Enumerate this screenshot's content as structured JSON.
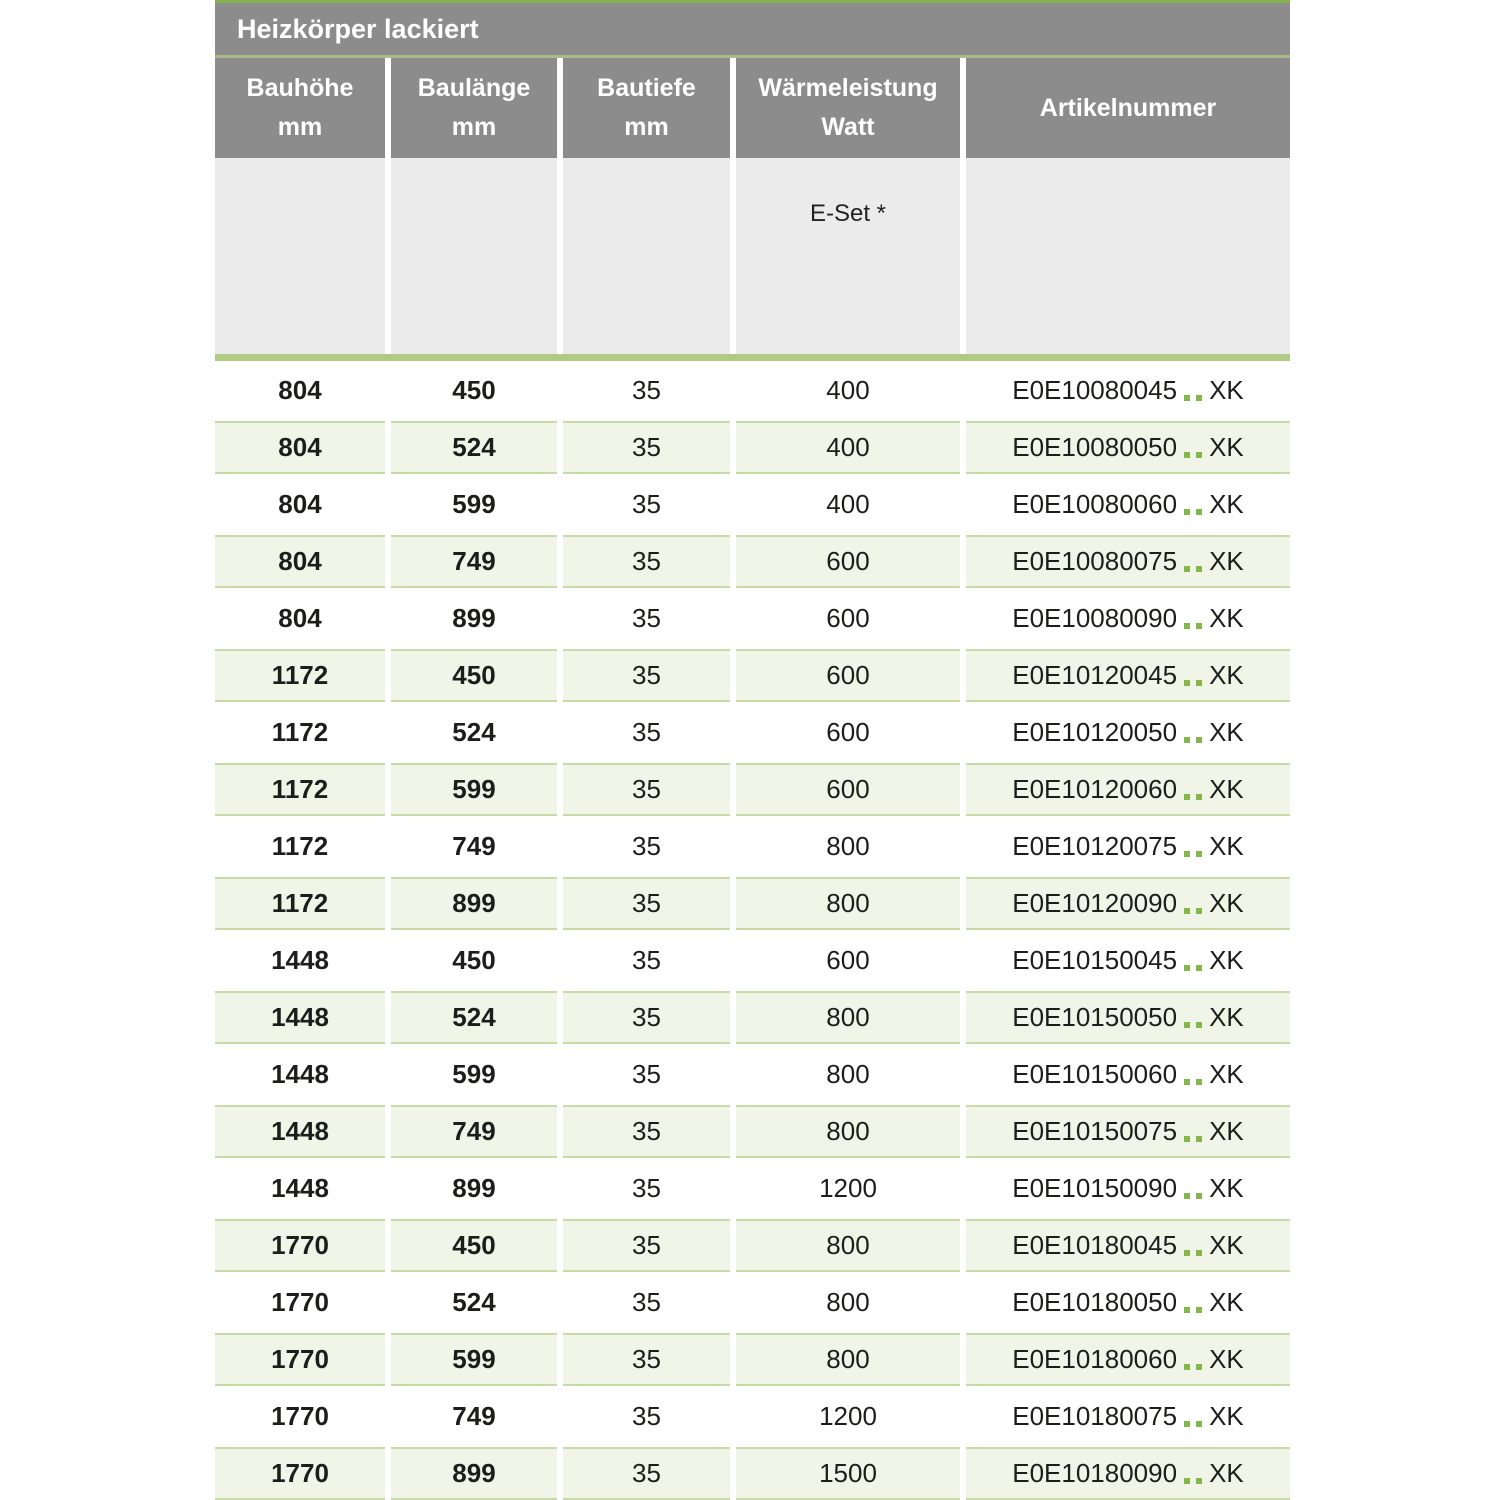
{
  "colors": {
    "gray": "#8c8c8c",
    "subGray": "#ebebeb",
    "greenTop": "#84b24c",
    "greenLine": "#a9bd85",
    "greenBar": "#afca82",
    "rowBg": "#f1f5e8",
    "rowBorder": "#c8daa6",
    "dot": "#84b74a",
    "text": "#1d1d1b"
  },
  "table": {
    "title": "Heizkörper lackiert",
    "columns": [
      {
        "line1": "Bauhöhe",
        "line2": "mm"
      },
      {
        "line1": "Baulänge",
        "line2": "mm"
      },
      {
        "line1": "Bautiefe",
        "line2": "mm"
      },
      {
        "line1": "Wärmeleistung",
        "line2": "Watt"
      },
      {
        "line1": "Artikelnummer",
        "line2": ""
      }
    ],
    "subheader": {
      "eset_label": "E-Set *"
    },
    "artikel_dots": "..",
    "rows": [
      {
        "bauhoehe": "804",
        "baulaenge": "450",
        "bautiefe": "35",
        "watt": "400",
        "artikel_code": "E0E10080045",
        "artikel_suffix": "XK"
      },
      {
        "bauhoehe": "804",
        "baulaenge": "524",
        "bautiefe": "35",
        "watt": "400",
        "artikel_code": "E0E10080050",
        "artikel_suffix": "XK"
      },
      {
        "bauhoehe": "804",
        "baulaenge": "599",
        "bautiefe": "35",
        "watt": "400",
        "artikel_code": "E0E10080060",
        "artikel_suffix": "XK"
      },
      {
        "bauhoehe": "804",
        "baulaenge": "749",
        "bautiefe": "35",
        "watt": "600",
        "artikel_code": "E0E10080075",
        "artikel_suffix": "XK"
      },
      {
        "bauhoehe": "804",
        "baulaenge": "899",
        "bautiefe": "35",
        "watt": "600",
        "artikel_code": "E0E10080090",
        "artikel_suffix": "XK"
      },
      {
        "bauhoehe": "1172",
        "baulaenge": "450",
        "bautiefe": "35",
        "watt": "600",
        "artikel_code": "E0E10120045",
        "artikel_suffix": "XK"
      },
      {
        "bauhoehe": "1172",
        "baulaenge": "524",
        "bautiefe": "35",
        "watt": "600",
        "artikel_code": "E0E10120050",
        "artikel_suffix": "XK"
      },
      {
        "bauhoehe": "1172",
        "baulaenge": "599",
        "bautiefe": "35",
        "watt": "600",
        "artikel_code": "E0E10120060",
        "artikel_suffix": "XK"
      },
      {
        "bauhoehe": "1172",
        "baulaenge": "749",
        "bautiefe": "35",
        "watt": "800",
        "artikel_code": "E0E10120075",
        "artikel_suffix": "XK"
      },
      {
        "bauhoehe": "1172",
        "baulaenge": "899",
        "bautiefe": "35",
        "watt": "800",
        "artikel_code": "E0E10120090",
        "artikel_suffix": "XK"
      },
      {
        "bauhoehe": "1448",
        "baulaenge": "450",
        "bautiefe": "35",
        "watt": "600",
        "artikel_code": "E0E10150045",
        "artikel_suffix": "XK"
      },
      {
        "bauhoehe": "1448",
        "baulaenge": "524",
        "bautiefe": "35",
        "watt": "800",
        "artikel_code": "E0E10150050",
        "artikel_suffix": "XK"
      },
      {
        "bauhoehe": "1448",
        "baulaenge": "599",
        "bautiefe": "35",
        "watt": "800",
        "artikel_code": "E0E10150060",
        "artikel_suffix": "XK"
      },
      {
        "bauhoehe": "1448",
        "baulaenge": "749",
        "bautiefe": "35",
        "watt": "800",
        "artikel_code": "E0E10150075",
        "artikel_suffix": "XK"
      },
      {
        "bauhoehe": "1448",
        "baulaenge": "899",
        "bautiefe": "35",
        "watt": "1200",
        "artikel_code": "E0E10150090",
        "artikel_suffix": "XK"
      },
      {
        "bauhoehe": "1770",
        "baulaenge": "450",
        "bautiefe": "35",
        "watt": "800",
        "artikel_code": "E0E10180045",
        "artikel_suffix": "XK"
      },
      {
        "bauhoehe": "1770",
        "baulaenge": "524",
        "bautiefe": "35",
        "watt": "800",
        "artikel_code": "E0E10180050",
        "artikel_suffix": "XK"
      },
      {
        "bauhoehe": "1770",
        "baulaenge": "599",
        "bautiefe": "35",
        "watt": "800",
        "artikel_code": "E0E10180060",
        "artikel_suffix": "XK"
      },
      {
        "bauhoehe": "1770",
        "baulaenge": "749",
        "bautiefe": "35",
        "watt": "1200",
        "artikel_code": "E0E10180075",
        "artikel_suffix": "XK"
      },
      {
        "bauhoehe": "1770",
        "baulaenge": "899",
        "bautiefe": "35",
        "watt": "1500",
        "artikel_code": "E0E10180090",
        "artikel_suffix": "XK"
      }
    ]
  }
}
